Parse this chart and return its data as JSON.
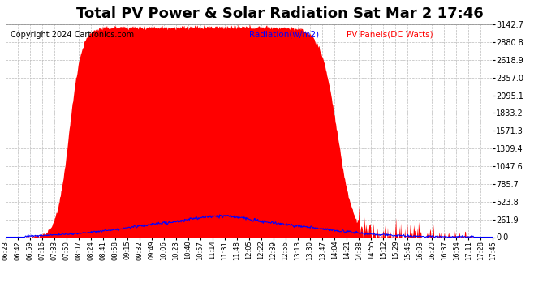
{
  "title": "Total PV Power & Solar Radiation Sat Mar 2 17:46",
  "copyright": "Copyright 2024 Cartronics.com",
  "legend_radiation": "Radiation(w/m2)",
  "legend_pv": "PV Panels(DC Watts)",
  "y_ticks": [
    0.0,
    261.9,
    523.8,
    785.7,
    1047.6,
    1309.4,
    1571.3,
    1833.2,
    2095.1,
    2357.0,
    2618.9,
    2880.8,
    3142.7
  ],
  "y_max": 3142.7,
  "y_min": 0.0,
  "bg_color": "#ffffff",
  "plot_bg_color": "#ffffff",
  "grid_color": "#bbbbbb",
  "radiation_color": "#0000ff",
  "pv_color": "#ff0000",
  "pv_fill_color": "#ff0000",
  "title_fontsize": 13,
  "copyright_fontsize": 7,
  "x_tick_fontsize": 6,
  "y_tick_fontsize": 7,
  "x_tick_labels": [
    "06:23",
    "06:42",
    "06:59",
    "07:16",
    "07:33",
    "07:50",
    "08:07",
    "08:24",
    "08:41",
    "08:58",
    "09:15",
    "09:32",
    "09:49",
    "10:06",
    "10:23",
    "10:40",
    "10:57",
    "11:14",
    "11:31",
    "11:48",
    "12:05",
    "12:22",
    "12:39",
    "12:56",
    "13:13",
    "13:30",
    "13:47",
    "14:04",
    "14:21",
    "14:38",
    "14:55",
    "15:12",
    "15:29",
    "15:46",
    "16:03",
    "16:20",
    "16:37",
    "16:54",
    "17:11",
    "17:28",
    "17:45"
  ]
}
